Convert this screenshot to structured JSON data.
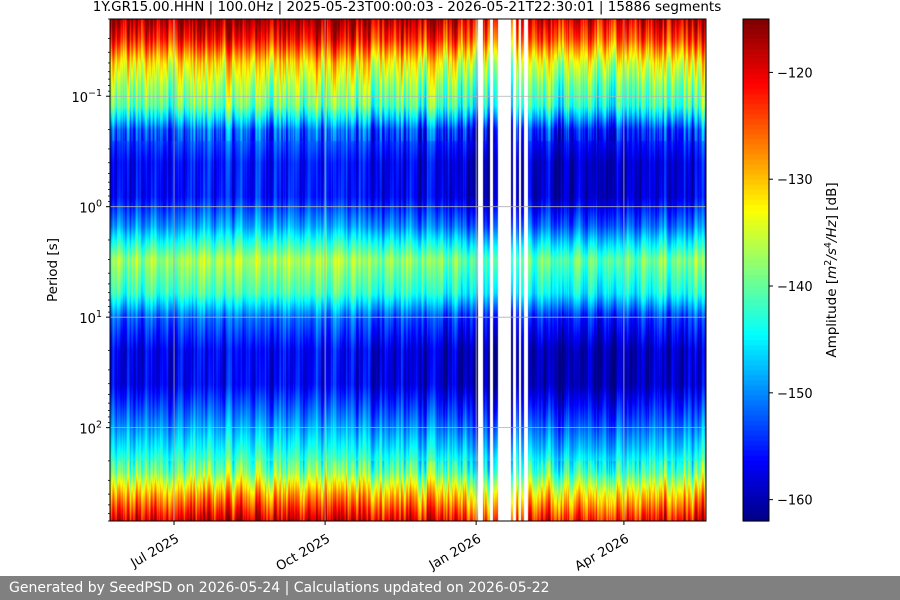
{
  "chart_data": {
    "type": "heatmap",
    "title": "1Y.GR15.00.HHN | 100.0Hz | 2025-05-23T00:00:03 - 2026-05-21T22:30:01 | 15886 segments",
    "xlabel": "",
    "ylabel": "Period [s]",
    "x_range": [
      "2025-05-23",
      "2026-05-21"
    ],
    "y_scale": "log",
    "y_inverted": true,
    "y_range": [
      0.02,
      700
    ],
    "x_ticks": [
      {
        "date": "2025-07-01",
        "label": "Jul 2025"
      },
      {
        "date": "2025-10-01",
        "label": "Oct 2025"
      },
      {
        "date": "2026-01-01",
        "label": "Jan 2026"
      },
      {
        "date": "2026-04-01",
        "label": "Apr 2026"
      }
    ],
    "y_ticks": [
      {
        "value": 0.1,
        "base": "10",
        "exp": "−1"
      },
      {
        "value": 1,
        "base": "10",
        "exp": "0"
      },
      {
        "value": 10,
        "base": "10",
        "exp": "1"
      },
      {
        "value": 100,
        "base": "10",
        "exp": "2"
      }
    ],
    "grid": true,
    "colormap": "jet",
    "colorbar": {
      "label_prefix": "Amplitude [",
      "label_suffix": "] [dB]",
      "unit_parts": [
        "m",
        "2",
        "/s",
        "4",
        "/Hz"
      ],
      "range": [
        -162,
        -115
      ],
      "ticks": [
        -120,
        -130,
        -140,
        -150,
        -160
      ],
      "tick_labels": [
        "−120",
        "−130",
        "−140",
        "−150",
        "−160"
      ]
    },
    "data_gaps": [
      {
        "start": "2026-01-02",
        "end": "2026-01-05"
      },
      {
        "start": "2026-01-09",
        "end": "2026-01-11"
      },
      {
        "start": "2026-01-14",
        "end": "2026-01-22"
      },
      {
        "start": "2026-01-23",
        "end": "2026-01-25"
      },
      {
        "start": "2026-01-27",
        "end": "2026-01-28"
      },
      {
        "start": "2026-01-30",
        "end": "2026-02-01"
      }
    ],
    "band_profile": {
      "periods_s": [
        0.02,
        0.03,
        0.05,
        0.08,
        0.12,
        0.2,
        0.4,
        0.8,
        1.5,
        3,
        6,
        10,
        20,
        40,
        80,
        150,
        250,
        400,
        700
      ],
      "mean_db": [
        -118,
        -123,
        -133,
        -138,
        -141,
        -153,
        -157,
        -157,
        -150,
        -138,
        -143,
        -153,
        -158,
        -158,
        -152,
        -146,
        -140,
        -130,
        -120
      ]
    }
  },
  "footer": {
    "text": "Generated by SeedPSD on 2026-05-24 | Calculations updated on 2026-05-22"
  }
}
